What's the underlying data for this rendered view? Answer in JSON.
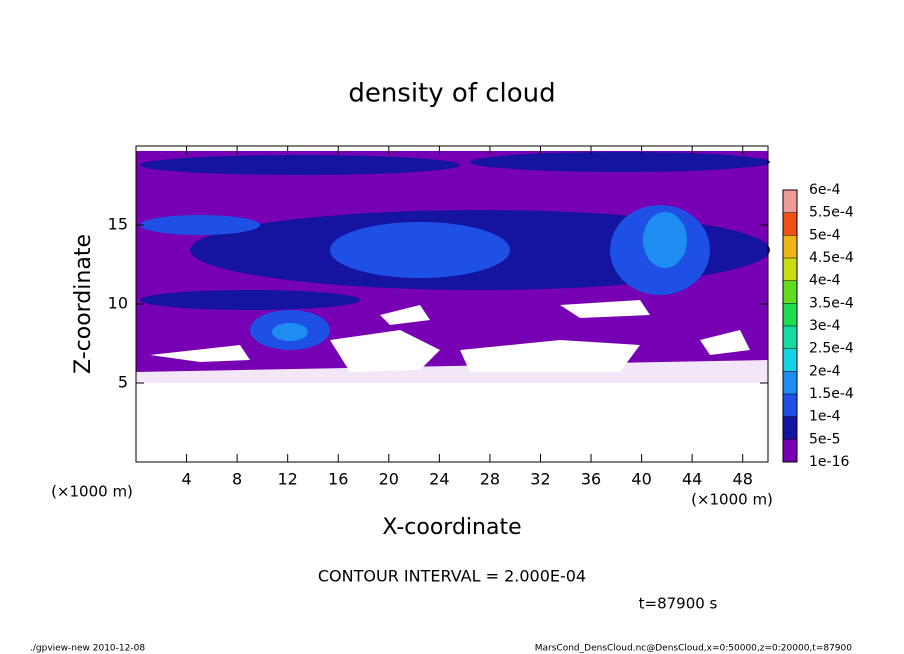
{
  "chart_data": {
    "type": "contour",
    "title": "density of cloud",
    "x_label": "X-coordinate",
    "y_label": "Z-coordinate",
    "x_units": "(×1000 m)",
    "xlim": [
      0,
      50
    ],
    "xticks": [
      4,
      8,
      12,
      16,
      20,
      24,
      28,
      32,
      36,
      40,
      44,
      48
    ],
    "ylim": [
      0,
      20
    ],
    "yticks": [
      5,
      10,
      15
    ],
    "colorbar": {
      "levels": [
        {
          "value": 1e-16,
          "label": "1e-16"
        },
        {
          "value": 5e-05,
          "label": "5e-5"
        },
        {
          "value": 0.0001,
          "label": "1e-4"
        },
        {
          "value": 0.00015,
          "label": "1.5e-4"
        },
        {
          "value": 0.0002,
          "label": "2e-4"
        },
        {
          "value": 0.00025,
          "label": "2.5e-4"
        },
        {
          "value": 0.0003,
          "label": "3e-4"
        },
        {
          "value": 0.00035,
          "label": "3.5e-4"
        },
        {
          "value": 0.0004,
          "label": "4e-4"
        },
        {
          "value": 0.00045,
          "label": "4.5e-4"
        },
        {
          "value": 0.0005,
          "label": "5e-4"
        },
        {
          "value": 0.00055,
          "label": "5.5e-4"
        },
        {
          "value": 0.0006,
          "label": "6e-4"
        }
      ],
      "colors": [
        "#7800b4",
        "#1414a0",
        "#1e50e6",
        "#1e8cf0",
        "#14d2e6",
        "#14dca0",
        "#1edc50",
        "#64dc1e",
        "#c8dc14",
        "#f0b414",
        "#f05014",
        "#f09c96"
      ]
    },
    "contour_interval": "CONTOUR INTERVAL = 2.000E-04",
    "time_label": "t=87900 s",
    "footer_left": "./gpview-new  2010-12-08",
    "footer_right": "MarsCond_DensCloud.nc@DensCloud,x=0:50000,z=0:20000,t=87900"
  }
}
